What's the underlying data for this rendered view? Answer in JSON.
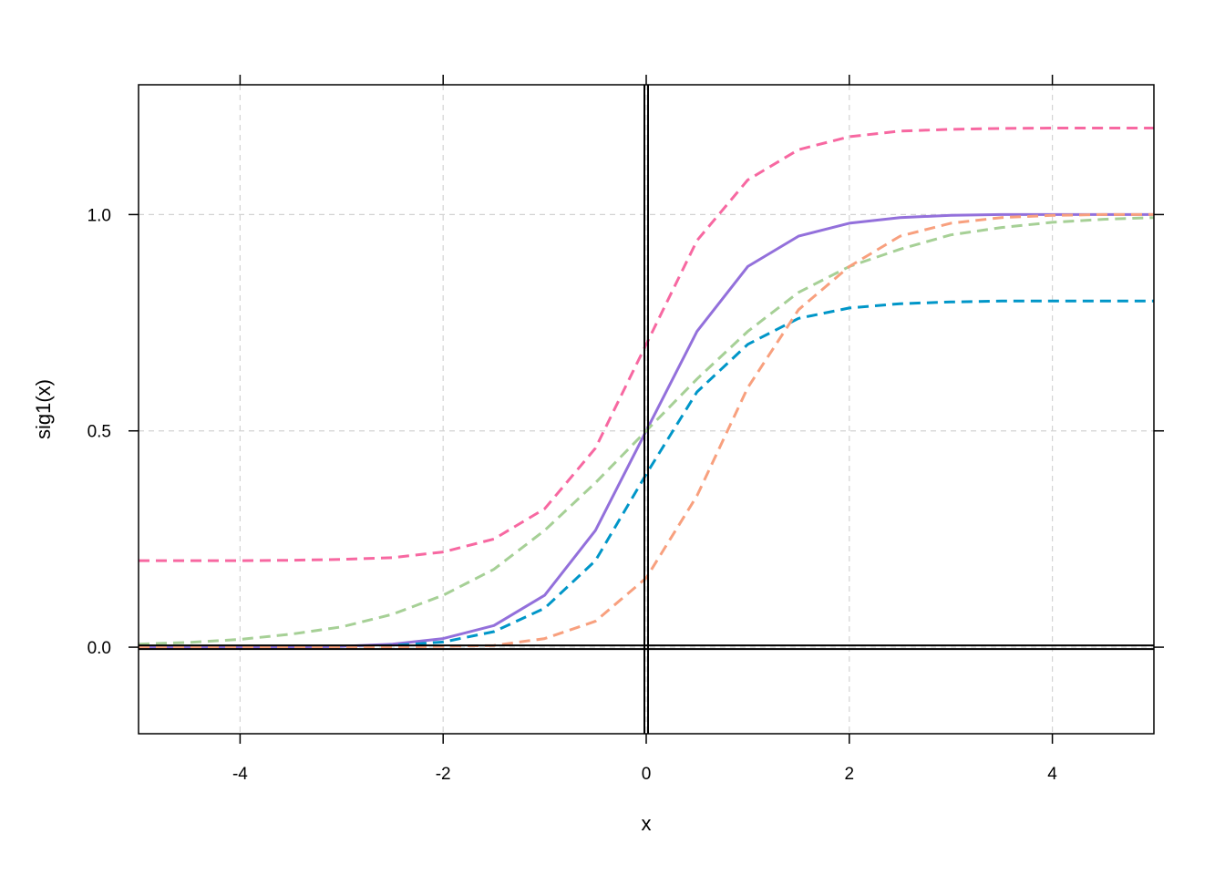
{
  "chart_data": {
    "type": "line",
    "title": "",
    "xlabel": "x",
    "ylabel": "sig1(x)",
    "xlim": [
      -5,
      5
    ],
    "ylim": [
      -0.2,
      1.3
    ],
    "x_ticks": [
      -4,
      -2,
      0,
      2,
      4
    ],
    "x_tick_labels": [
      "-4",
      "-2",
      "0",
      "2",
      "4"
    ],
    "y_ticks": [
      0,
      0.5,
      1
    ],
    "y_tick_labels": [
      "0.0",
      "0.5",
      "1.0"
    ],
    "grid": true,
    "reference_lines": {
      "x": 0,
      "y": 0
    },
    "x": [
      -5,
      -4.5,
      -4,
      -3.5,
      -3,
      -2.5,
      -2,
      -1.5,
      -1,
      -0.5,
      0,
      0.5,
      1,
      1.5,
      2,
      2.5,
      3,
      3.5,
      4,
      4.5,
      5
    ],
    "series": [
      {
        "color": "#f768a1",
        "dash": true,
        "values": [
          0.2,
          0.2,
          0.2,
          0.201,
          0.203,
          0.207,
          0.22,
          0.25,
          0.32,
          0.46,
          0.7,
          0.94,
          1.08,
          1.15,
          1.18,
          1.193,
          1.197,
          1.199,
          1.2,
          1.2,
          1.2
        ]
      },
      {
        "color": "#9370db",
        "dash": false,
        "values": [
          0.0,
          0.0,
          0.0,
          0.0,
          0.002,
          0.007,
          0.02,
          0.05,
          0.12,
          0.27,
          0.5,
          0.73,
          0.88,
          0.95,
          0.98,
          0.993,
          0.998,
          1.0,
          1.0,
          1.0,
          1.0
        ]
      },
      {
        "color": "#a6d096",
        "dash": true,
        "values": [
          0.007,
          0.011,
          0.018,
          0.03,
          0.047,
          0.076,
          0.12,
          0.18,
          0.27,
          0.38,
          0.5,
          0.62,
          0.73,
          0.82,
          0.88,
          0.92,
          0.953,
          0.97,
          0.982,
          0.989,
          0.993
        ]
      },
      {
        "color": "#0096c8",
        "dash": true,
        "values": [
          0.0,
          0.0,
          0.0,
          0.0,
          0.0,
          0.004,
          0.012,
          0.036,
          0.09,
          0.2,
          0.4,
          0.59,
          0.7,
          0.76,
          0.784,
          0.794,
          0.798,
          0.8,
          0.8,
          0.8,
          0.8
        ]
      },
      {
        "color": "#f8a07e",
        "dash": true,
        "values": [
          0.0,
          0.0,
          0.0,
          0.0,
          0.0,
          0.0,
          0.002,
          0.004,
          0.02,
          0.06,
          0.16,
          0.35,
          0.6,
          0.78,
          0.88,
          0.95,
          0.98,
          0.993,
          0.998,
          1.0,
          1.0
        ]
      }
    ]
  }
}
